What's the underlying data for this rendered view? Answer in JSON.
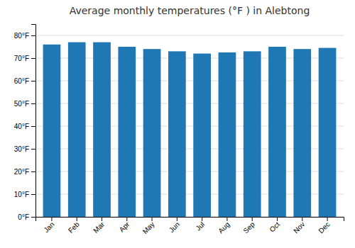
{
  "chart_data": {
    "type": "bar",
    "title": "Average monthly temperatures (°F ) in Alebtong",
    "categories": [
      "Jan",
      "Feb",
      "Mar",
      "Apr",
      "May",
      "Jun",
      "Jul",
      "Aug",
      "Sep",
      "Oct",
      "Nov",
      "Dec"
    ],
    "values": [
      76,
      77,
      77,
      75,
      74,
      73,
      72,
      72.5,
      73,
      75,
      74,
      74.5
    ],
    "ylim": [
      0,
      85
    ],
    "yticks": [
      {
        "value": 0,
        "label": "0°F"
      },
      {
        "value": 10,
        "label": "10°F"
      },
      {
        "value": 20,
        "label": "20°F"
      },
      {
        "value": 30,
        "label": "30°F"
      },
      {
        "value": 40,
        "label": "40°F"
      },
      {
        "value": 50,
        "label": "50°F"
      },
      {
        "value": 60,
        "label": "60°F"
      },
      {
        "value": 70,
        "label": "70°F"
      },
      {
        "value": 80,
        "label": "80°F"
      }
    ],
    "grid": true
  }
}
